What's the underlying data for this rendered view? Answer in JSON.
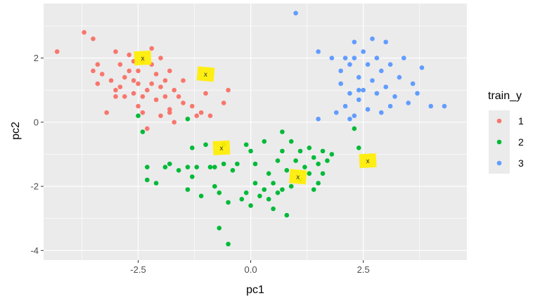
{
  "chart_data": {
    "type": "scatter",
    "title": "",
    "xlabel": "pc1",
    "ylabel": "pc2",
    "xlim": [
      -4.6,
      4.8
    ],
    "ylim": [
      -4.3,
      3.7
    ],
    "x_ticks": [
      -2.5,
      0.0,
      2.5
    ],
    "x_tick_labels": [
      "-2.5",
      "0.0",
      "2.5"
    ],
    "y_ticks": [
      -4,
      -2,
      0,
      2
    ],
    "y_tick_labels": [
      "-4",
      "-2",
      "0",
      "2"
    ],
    "grid": true,
    "legend": {
      "title": "train_y",
      "placement": "right",
      "entries": [
        {
          "label": "1",
          "color": "#F8766D"
        },
        {
          "label": "2",
          "color": "#00BA38"
        },
        {
          "label": "3",
          "color": "#619CFF"
        }
      ]
    },
    "series": [
      {
        "name": "1",
        "color": "#F8766D",
        "points": [
          [
            -4.3,
            2.2
          ],
          [
            -3.7,
            2.8
          ],
          [
            -3.5,
            2.6
          ],
          [
            -3.4,
            1.8
          ],
          [
            -3.5,
            1.6
          ],
          [
            -3.4,
            1.2
          ],
          [
            -3.3,
            1.5
          ],
          [
            -3.2,
            0.3
          ],
          [
            -3.1,
            1.3
          ],
          [
            -3.0,
            1.0
          ],
          [
            -3.0,
            0.8
          ],
          [
            -3.0,
            2.2
          ],
          [
            -2.9,
            1.8
          ],
          [
            -2.8,
            0.8
          ],
          [
            -2.8,
            1.4
          ],
          [
            -2.7,
            2.1
          ],
          [
            -2.7,
            1.6
          ],
          [
            -2.6,
            1.3
          ],
          [
            -2.6,
            0.9
          ],
          [
            -2.5,
            1.6
          ],
          [
            -2.5,
            1.2
          ],
          [
            -2.5,
            0.5
          ],
          [
            -2.4,
            1.9
          ],
          [
            -2.4,
            0.3
          ],
          [
            -2.3,
            1.0
          ],
          [
            -2.2,
            2.3
          ],
          [
            -2.2,
            1.8
          ],
          [
            -2.2,
            1.2
          ],
          [
            -2.1,
            1.5
          ],
          [
            -2.1,
            0.7
          ],
          [
            -2.0,
            1.1
          ],
          [
            -2.0,
            2.0
          ],
          [
            -1.9,
            1.3
          ],
          [
            -1.9,
            0.8
          ],
          [
            -1.8,
            1.6
          ],
          [
            -1.8,
            0.4
          ],
          [
            -1.7,
            1.0
          ],
          [
            -1.7,
            0.0
          ],
          [
            -1.6,
            0.8
          ],
          [
            -1.5,
            1.3
          ],
          [
            -1.5,
            0.6
          ],
          [
            -1.3,
            0.5
          ],
          [
            -1.2,
            0.2
          ],
          [
            -1.1,
            0.3
          ],
          [
            -1.0,
            0.9
          ],
          [
            -0.9,
            0.2
          ],
          [
            -0.6,
            0.6
          ],
          [
            -0.5,
            1.0
          ],
          [
            -2.3,
            -0.2
          ],
          [
            -2.0,
            0.2
          ],
          [
            -1.8,
            0.3
          ],
          [
            -2.6,
            1.9
          ],
          [
            -2.9,
            1.1
          ],
          [
            -2.4,
            0.8
          ]
        ]
      },
      {
        "name": "2",
        "color": "#00BA38",
        "points": [
          [
            -2.3,
            -1.4
          ],
          [
            -2.3,
            -1.8
          ],
          [
            -2.1,
            -1.9
          ],
          [
            -1.9,
            -1.4
          ],
          [
            -1.8,
            -1.3
          ],
          [
            -1.6,
            -1.5
          ],
          [
            -1.4,
            -1.4
          ],
          [
            -1.4,
            -2.1
          ],
          [
            -1.3,
            -0.8
          ],
          [
            -1.3,
            -1.7
          ],
          [
            -1.2,
            -1.4
          ],
          [
            -1.1,
            -2.3
          ],
          [
            -1.0,
            -0.7
          ],
          [
            -0.9,
            -1.4
          ],
          [
            -0.8,
            -1.4
          ],
          [
            -0.8,
            -2.0
          ],
          [
            -0.7,
            -2.2
          ],
          [
            -0.7,
            -3.3
          ],
          [
            -0.6,
            -0.7
          ],
          [
            -0.6,
            -1.3
          ],
          [
            -0.5,
            -2.5
          ],
          [
            -0.5,
            -3.8
          ],
          [
            -0.4,
            -1.5
          ],
          [
            -0.3,
            -1.3
          ],
          [
            -0.2,
            -2.4
          ],
          [
            -0.1,
            -2.2
          ],
          [
            0.0,
            -0.9
          ],
          [
            0.0,
            -2.6
          ],
          [
            0.1,
            -1.3
          ],
          [
            0.1,
            -1.9
          ],
          [
            0.2,
            -2.3
          ],
          [
            0.3,
            -2.1
          ],
          [
            0.4,
            -1.6
          ],
          [
            0.4,
            -2.4
          ],
          [
            0.5,
            -2.7
          ],
          [
            0.5,
            -1.9
          ],
          [
            0.6,
            -2.2
          ],
          [
            0.6,
            -1.2
          ],
          [
            0.7,
            -0.9
          ],
          [
            0.7,
            -2.1
          ],
          [
            0.8,
            -1.5
          ],
          [
            0.8,
            -2.9
          ],
          [
            0.9,
            -0.6
          ],
          [
            0.9,
            -2.0
          ],
          [
            1.0,
            -1.2
          ],
          [
            1.1,
            -0.9
          ],
          [
            1.1,
            -1.8
          ],
          [
            1.2,
            -1.4
          ],
          [
            1.3,
            -0.8
          ],
          [
            1.3,
            -1.6
          ],
          [
            1.4,
            -1.1
          ],
          [
            1.4,
            -2.1
          ],
          [
            1.5,
            -1.3
          ],
          [
            1.5,
            -1.9
          ],
          [
            1.6,
            -0.9
          ],
          [
            1.6,
            -1.6
          ],
          [
            1.7,
            -1.2
          ],
          [
            1.8,
            -1.0
          ],
          [
            0.7,
            -0.3
          ],
          [
            0.3,
            -0.6
          ],
          [
            -0.1,
            -0.7
          ],
          [
            -2.5,
            0.2
          ],
          [
            -2.4,
            -0.3
          ],
          [
            -1.4,
            0.1
          ],
          [
            2.3,
            -0.2
          ],
          [
            2.4,
            -0.8
          ]
        ]
      },
      {
        "name": "3",
        "color": "#619CFF",
        "points": [
          [
            1.0,
            3.4
          ],
          [
            1.5,
            0.1
          ],
          [
            1.5,
            2.2
          ],
          [
            1.8,
            2.0
          ],
          [
            1.9,
            0.3
          ],
          [
            2.0,
            1.6
          ],
          [
            2.0,
            1.2
          ],
          [
            2.1,
            2.0
          ],
          [
            2.1,
            0.5
          ],
          [
            2.2,
            1.8
          ],
          [
            2.2,
            0.9
          ],
          [
            2.3,
            2.5
          ],
          [
            2.3,
            2.0
          ],
          [
            2.3,
            0.2
          ],
          [
            2.4,
            1.4
          ],
          [
            2.4,
            0.7
          ],
          [
            2.5,
            2.2
          ],
          [
            2.5,
            1.0
          ],
          [
            2.6,
            1.8
          ],
          [
            2.6,
            0.4
          ],
          [
            2.7,
            2.6
          ],
          [
            2.7,
            1.3
          ],
          [
            2.8,
            0.9
          ],
          [
            2.8,
            2.0
          ],
          [
            2.9,
            1.6
          ],
          [
            2.9,
            0.3
          ],
          [
            3.0,
            2.5
          ],
          [
            3.0,
            1.1
          ],
          [
            3.1,
            0.5
          ],
          [
            3.1,
            1.8
          ],
          [
            3.2,
            0.8
          ],
          [
            3.3,
            1.4
          ],
          [
            3.4,
            2.0
          ],
          [
            3.5,
            0.6
          ],
          [
            3.6,
            1.2
          ],
          [
            3.7,
            0.9
          ],
          [
            3.8,
            1.7
          ],
          [
            4.0,
            0.5
          ],
          [
            4.3,
            0.5
          ],
          [
            2.4,
            1.0
          ],
          [
            2.2,
            0.1
          ]
        ]
      }
    ],
    "highlights": [
      {
        "label": "x",
        "x": -2.4,
        "y": 2.0,
        "color": "#FFEE00"
      },
      {
        "label": "x",
        "x": -1.0,
        "y": 1.5,
        "color": "#FFEE00"
      },
      {
        "label": "x",
        "x": -0.65,
        "y": -0.8,
        "color": "#FFEE00"
      },
      {
        "label": "x",
        "x": 1.05,
        "y": -1.7,
        "color": "#FFEE00"
      },
      {
        "label": "x",
        "x": 2.6,
        "y": -1.2,
        "color": "#FFEE00"
      }
    ],
    "colors": {
      "panel_background": "#EBEBEB",
      "grid_major": "#FFFFFF",
      "legend_key_background": "#EBEBEB"
    }
  }
}
